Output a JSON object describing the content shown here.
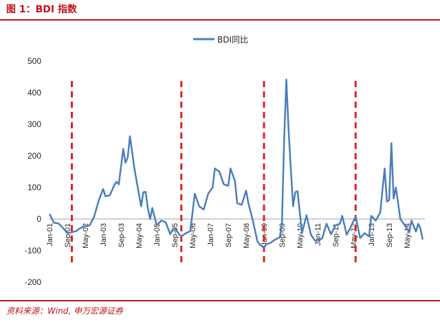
{
  "figure_title": "图 1：BDI 指数",
  "source_note": "资料来源：Wind, 申万宏源证券",
  "colors": {
    "line": "#4a7ebb",
    "marker_line": "#e02020",
    "title": "#c0141b",
    "rule": "#b3191f"
  },
  "chart_data": {
    "type": "line",
    "ylim": [
      -200,
      500
    ],
    "yticks": [
      -200,
      -100,
      0,
      100,
      200,
      300,
      400,
      500
    ],
    "xlim": [
      "2001-01",
      "2015-01"
    ],
    "xticks": [
      "Jan-01",
      "Sep-01",
      "May-02",
      "Jan-03",
      "Sep-03",
      "May-04",
      "Jan-05",
      "Sep-05",
      "May-06",
      "Jan-07",
      "Sep-07",
      "May-08",
      "Jan-09",
      "Sep-09",
      "May-10",
      "Jan-11",
      "Sep-11",
      "May-12",
      "Jan-13",
      "Sep-13",
      "May-14"
    ],
    "legend": "top-center",
    "grid": false,
    "vertical_markers": [
      "2001-11",
      "2005-12",
      "2009-01",
      "2012-06"
    ],
    "series": [
      {
        "name": "BDI同比",
        "points": [
          [
            "2001-01",
            16
          ],
          [
            "2001-03",
            -12
          ],
          [
            "2001-05",
            -14
          ],
          [
            "2001-07",
            -28
          ],
          [
            "2001-09",
            -45
          ],
          [
            "2001-11",
            -42
          ],
          [
            "2002-01",
            -38
          ],
          [
            "2002-03",
            -28
          ],
          [
            "2002-05",
            -22
          ],
          [
            "2002-07",
            -20
          ],
          [
            "2002-09",
            8
          ],
          [
            "2002-11",
            58
          ],
          [
            "2003-01",
            95
          ],
          [
            "2003-02",
            72
          ],
          [
            "2003-04",
            75
          ],
          [
            "2003-06",
            108
          ],
          [
            "2003-07",
            118
          ],
          [
            "2003-08",
            110
          ],
          [
            "2003-10",
            222
          ],
          [
            "2003-11",
            178
          ],
          [
            "2003-12",
            195
          ],
          [
            "2004-01",
            262
          ],
          [
            "2004-03",
            160
          ],
          [
            "2004-05",
            80
          ],
          [
            "2004-06",
            40
          ],
          [
            "2004-07",
            85
          ],
          [
            "2004-08",
            86
          ],
          [
            "2004-09",
            35
          ],
          [
            "2004-10",
            0
          ],
          [
            "2004-11",
            35
          ],
          [
            "2005-01",
            -20
          ],
          [
            "2005-03",
            -5
          ],
          [
            "2005-05",
            -10
          ],
          [
            "2005-07",
            -48
          ],
          [
            "2005-08",
            -35
          ],
          [
            "2005-09",
            -28
          ],
          [
            "2005-11",
            -48
          ],
          [
            "2005-12",
            -55
          ],
          [
            "2006-02",
            -45
          ],
          [
            "2006-04",
            -38
          ],
          [
            "2006-06",
            80
          ],
          [
            "2006-08",
            40
          ],
          [
            "2006-10",
            30
          ],
          [
            "2006-12",
            80
          ],
          [
            "2007-02",
            100
          ],
          [
            "2007-03",
            160
          ],
          [
            "2007-05",
            150
          ],
          [
            "2007-07",
            110
          ],
          [
            "2007-09",
            105
          ],
          [
            "2007-10",
            160
          ],
          [
            "2007-12",
            120
          ],
          [
            "2008-01",
            50
          ],
          [
            "2008-03",
            45
          ],
          [
            "2008-05",
            90
          ],
          [
            "2008-06",
            50
          ],
          [
            "2008-08",
            -5
          ],
          [
            "2008-10",
            -70
          ],
          [
            "2008-11",
            -80
          ],
          [
            "2009-01",
            -92
          ],
          [
            "2009-02",
            -80
          ],
          [
            "2009-04",
            -75
          ],
          [
            "2009-06",
            -65
          ],
          [
            "2009-08",
            -58
          ],
          [
            "2009-09",
            -20
          ],
          [
            "2009-10",
            250
          ],
          [
            "2009-11",
            442
          ],
          [
            "2009-12",
            280
          ],
          [
            "2010-01",
            160
          ],
          [
            "2010-02",
            40
          ],
          [
            "2010-03",
            85
          ],
          [
            "2010-04",
            88
          ],
          [
            "2010-06",
            -45
          ],
          [
            "2010-08",
            12
          ],
          [
            "2010-10",
            -50
          ],
          [
            "2010-12",
            -70
          ],
          [
            "2011-03",
            -62
          ],
          [
            "2011-05",
            -15
          ],
          [
            "2011-07",
            -48
          ],
          [
            "2011-09",
            -20
          ],
          [
            "2011-11",
            -15
          ],
          [
            "2011-12",
            10
          ],
          [
            "2012-02",
            -50
          ],
          [
            "2012-04",
            -22
          ],
          [
            "2012-06",
            8
          ],
          [
            "2012-08",
            -60
          ],
          [
            "2012-10",
            -45
          ],
          [
            "2012-12",
            -55
          ],
          [
            "2013-01",
            10
          ],
          [
            "2013-03",
            -5
          ],
          [
            "2013-05",
            20
          ],
          [
            "2013-07",
            160
          ],
          [
            "2013-08",
            55
          ],
          [
            "2013-09",
            60
          ],
          [
            "2013-10",
            240
          ],
          [
            "2013-11",
            65
          ],
          [
            "2013-12",
            100
          ],
          [
            "2014-02",
            0
          ],
          [
            "2014-04",
            -20
          ],
          [
            "2014-06",
            -42
          ],
          [
            "2014-07",
            -5
          ],
          [
            "2014-09",
            -40
          ],
          [
            "2014-10",
            -15
          ],
          [
            "2014-11",
            -30
          ],
          [
            "2014-12",
            -65
          ]
        ]
      }
    ]
  }
}
